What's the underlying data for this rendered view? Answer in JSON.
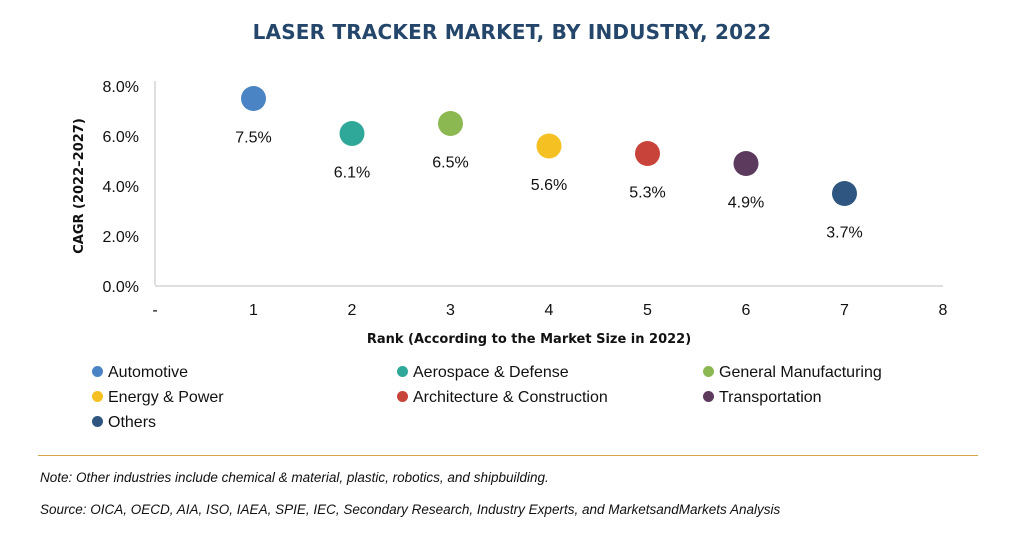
{
  "chart_data": {
    "type": "scatter",
    "title": "LASER TRACKER MARKET, BY INDUSTRY, 2022",
    "xlabel": "Rank (According to the Market Size in 2022)",
    "ylabel": "CAGR (2022–2027)",
    "x_ticks": [
      "-",
      "1",
      "2",
      "3",
      "4",
      "5",
      "6",
      "7",
      "8"
    ],
    "xlim": [
      0,
      8
    ],
    "y_ticks": [
      "0.0%",
      "2.0%",
      "4.0%",
      "6.0%",
      "8.0%"
    ],
    "ylim": [
      0,
      8
    ],
    "grid": false,
    "legend_position": "bottom",
    "series": [
      {
        "name": "Automotive",
        "x": 1,
        "y": 7.5,
        "label": "7.5%",
        "color": "#4a84c4"
      },
      {
        "name": "Aerospace & Defense",
        "x": 2,
        "y": 6.1,
        "label": "6.1%",
        "color": "#2fa89a"
      },
      {
        "name": "General Manufacturing",
        "x": 3,
        "y": 6.5,
        "label": "6.5%",
        "color": "#8cb852"
      },
      {
        "name": "Energy & Power",
        "x": 4,
        "y": 5.6,
        "label": "5.6%",
        "color": "#f5c021"
      },
      {
        "name": "Architecture & Construction",
        "x": 5,
        "y": 5.3,
        "label": "5.3%",
        "color": "#c8443a"
      },
      {
        "name": "Transportation",
        "x": 6,
        "y": 4.9,
        "label": "4.9%",
        "color": "#5b3a5e"
      },
      {
        "name": "Others",
        "x": 7,
        "y": 3.7,
        "label": "3.7%",
        "color": "#2e5680"
      }
    ]
  },
  "note": "Note: Other industries include chemical & material, plastic, robotics, and shipbuilding.",
  "source": "Source: OICA, OECD, AIA, ISO, IAEA, SPIE, IEC, Secondary Research, Industry Experts, and MarketsandMarkets Analysis",
  "colors": {
    "title": "#24466b",
    "rule": "#d6a24a"
  }
}
